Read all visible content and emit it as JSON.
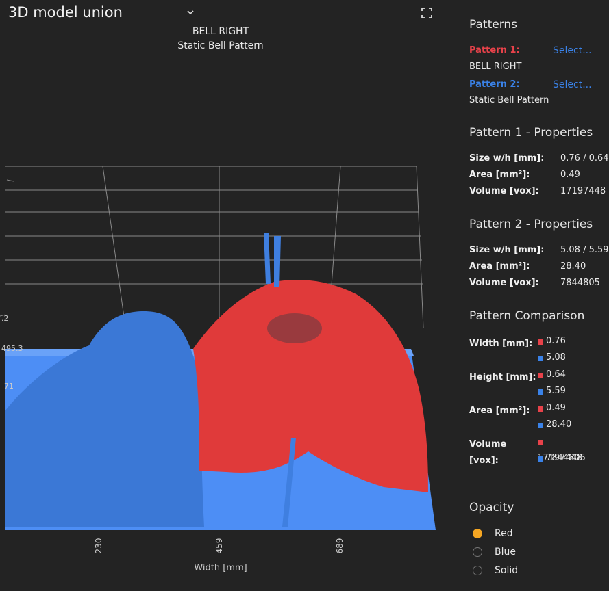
{
  "header": {
    "title": "3D model union",
    "plot_title": "BELL RIGHT",
    "plot_subtitle": "Static Bell Pattern"
  },
  "plot": {
    "x_ticks": [
      "230",
      "459",
      "689"
    ],
    "x_label": "Width [mm]",
    "side_labels": [
      ".2",
      "495.3",
      "71"
    ]
  },
  "panel": {
    "patterns": {
      "heading": "Patterns",
      "pattern1": {
        "label": "Pattern 1:",
        "select": "Select...",
        "name": "BELL RIGHT"
      },
      "pattern2": {
        "label": "Pattern 2:",
        "select": "Select...",
        "name": "Static Bell Pattern"
      }
    },
    "properties": [
      {
        "heading": "Pattern 1 - Properties",
        "rows": [
          {
            "label": "Size w/h [mm]:",
            "value": "0.76 / 0.64"
          },
          {
            "label": "Area [mm²]:",
            "value": "0.49"
          },
          {
            "label": "Volume [vox]:",
            "value": "17197448"
          }
        ]
      },
      {
        "heading": "Pattern 2 - Properties",
        "rows": [
          {
            "label": "Size w/h [mm]:",
            "value": "5.08 / 5.59"
          },
          {
            "label": "Area [mm²]:",
            "value": "28.40"
          },
          {
            "label": "Volume [vox]:",
            "value": "7844805"
          }
        ]
      }
    ],
    "comparison": {
      "heading": "Pattern Comparison",
      "rows": [
        {
          "label": "Width [mm]:",
          "values": [
            "0.76",
            "5.08"
          ]
        },
        {
          "label": "Height [mm]:",
          "values": [
            "0.64",
            "5.59"
          ]
        },
        {
          "label": "Area [mm²]:",
          "values": [
            "0.49",
            "28.40"
          ]
        },
        {
          "label": "Volume [vox]:",
          "values": [
            "17197448",
            "7844805"
          ]
        }
      ]
    },
    "opacity": {
      "heading": "Opacity",
      "options": [
        "Red",
        "Blue",
        "Solid"
      ],
      "selected": 0
    }
  }
}
